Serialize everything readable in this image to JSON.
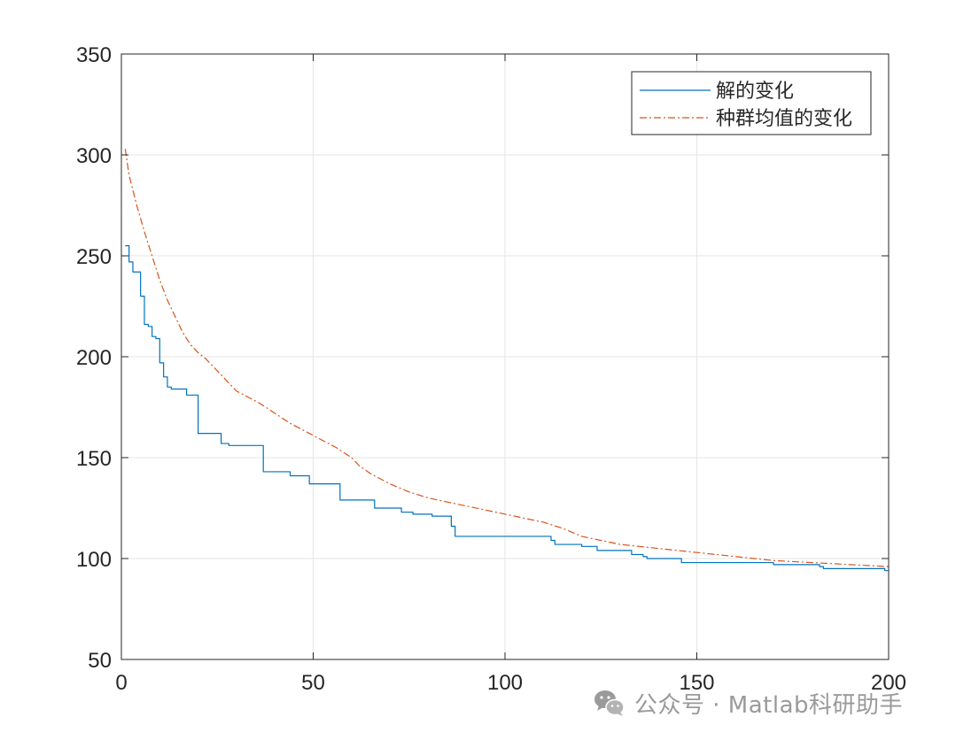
{
  "chart_data": {
    "type": "line",
    "title": "",
    "xlabel": "",
    "ylabel": "",
    "xlim": [
      0,
      200
    ],
    "ylim": [
      50,
      350
    ],
    "xticks": [
      0,
      50,
      100,
      150,
      200
    ],
    "yticks": [
      50,
      100,
      150,
      200,
      250,
      300,
      350
    ],
    "grid": true,
    "legend_position": "top-right",
    "series": [
      {
        "name": "解的变化",
        "color": "#0072BD",
        "style": "solid",
        "step": true,
        "points": [
          [
            1,
            255
          ],
          [
            2,
            247
          ],
          [
            3,
            242
          ],
          [
            4,
            242
          ],
          [
            5,
            230
          ],
          [
            6,
            216
          ],
          [
            7,
            215
          ],
          [
            8,
            210
          ],
          [
            9,
            209
          ],
          [
            10,
            197
          ],
          [
            11,
            190
          ],
          [
            12,
            185
          ],
          [
            13,
            184
          ],
          [
            16,
            184
          ],
          [
            17,
            181
          ],
          [
            19,
            181
          ],
          [
            20,
            162
          ],
          [
            25,
            162
          ],
          [
            26,
            157
          ],
          [
            28,
            156
          ],
          [
            36,
            156
          ],
          [
            37,
            143
          ],
          [
            42,
            143
          ],
          [
            44,
            141
          ],
          [
            48,
            141
          ],
          [
            49,
            137
          ],
          [
            56,
            137
          ],
          [
            57,
            129
          ],
          [
            65,
            129
          ],
          [
            66,
            125
          ],
          [
            72,
            125
          ],
          [
            73,
            123
          ],
          [
            75,
            123
          ],
          [
            76,
            122
          ],
          [
            80,
            122
          ],
          [
            81,
            121
          ],
          [
            85,
            121
          ],
          [
            86,
            116
          ],
          [
            87,
            111
          ],
          [
            111,
            111
          ],
          [
            112,
            109
          ],
          [
            113,
            107
          ],
          [
            119,
            107
          ],
          [
            120,
            106
          ],
          [
            123,
            106
          ],
          [
            124,
            104
          ],
          [
            132,
            104
          ],
          [
            133,
            102
          ],
          [
            136,
            101
          ],
          [
            137,
            100
          ],
          [
            145,
            100
          ],
          [
            146,
            98
          ],
          [
            165,
            98
          ],
          [
            170,
            97
          ],
          [
            180,
            97
          ],
          [
            182,
            96
          ],
          [
            183,
            95
          ],
          [
            198,
            95
          ],
          [
            199,
            94
          ],
          [
            200,
            94
          ]
        ]
      },
      {
        "name": "种群均值的变化",
        "color": "#D95319",
        "style": "dashdot",
        "step": false,
        "points": [
          [
            1,
            303
          ],
          [
            2,
            290
          ],
          [
            4,
            275
          ],
          [
            6,
            262
          ],
          [
            8,
            250
          ],
          [
            10,
            238
          ],
          [
            12,
            228
          ],
          [
            14,
            220
          ],
          [
            16,
            212
          ],
          [
            18,
            206
          ],
          [
            20,
            202
          ],
          [
            22,
            199
          ],
          [
            24,
            195
          ],
          [
            26,
            191
          ],
          [
            28,
            187
          ],
          [
            30,
            183
          ],
          [
            33,
            180
          ],
          [
            36,
            177
          ],
          [
            40,
            172
          ],
          [
            44,
            167
          ],
          [
            48,
            163
          ],
          [
            52,
            159
          ],
          [
            56,
            155
          ],
          [
            60,
            150
          ],
          [
            62,
            146
          ],
          [
            65,
            142
          ],
          [
            70,
            137
          ],
          [
            75,
            133
          ],
          [
            80,
            130
          ],
          [
            85,
            128
          ],
          [
            90,
            126
          ],
          [
            95,
            124
          ],
          [
            100,
            122
          ],
          [
            105,
            120
          ],
          [
            110,
            118
          ],
          [
            115,
            115
          ],
          [
            120,
            111
          ],
          [
            125,
            109
          ],
          [
            130,
            107
          ],
          [
            135,
            106
          ],
          [
            140,
            105
          ],
          [
            145,
            104
          ],
          [
            150,
            103
          ],
          [
            155,
            102
          ],
          [
            160,
            101
          ],
          [
            165,
            100
          ],
          [
            170,
            99
          ],
          [
            175,
            98.5
          ],
          [
            180,
            98
          ],
          [
            185,
            97.5
          ],
          [
            190,
            97
          ],
          [
            195,
            96.5
          ],
          [
            200,
            96
          ]
        ]
      }
    ]
  },
  "watermark": {
    "text": "公众号 · Matlab科研助手",
    "icon": "wechat-icon"
  }
}
